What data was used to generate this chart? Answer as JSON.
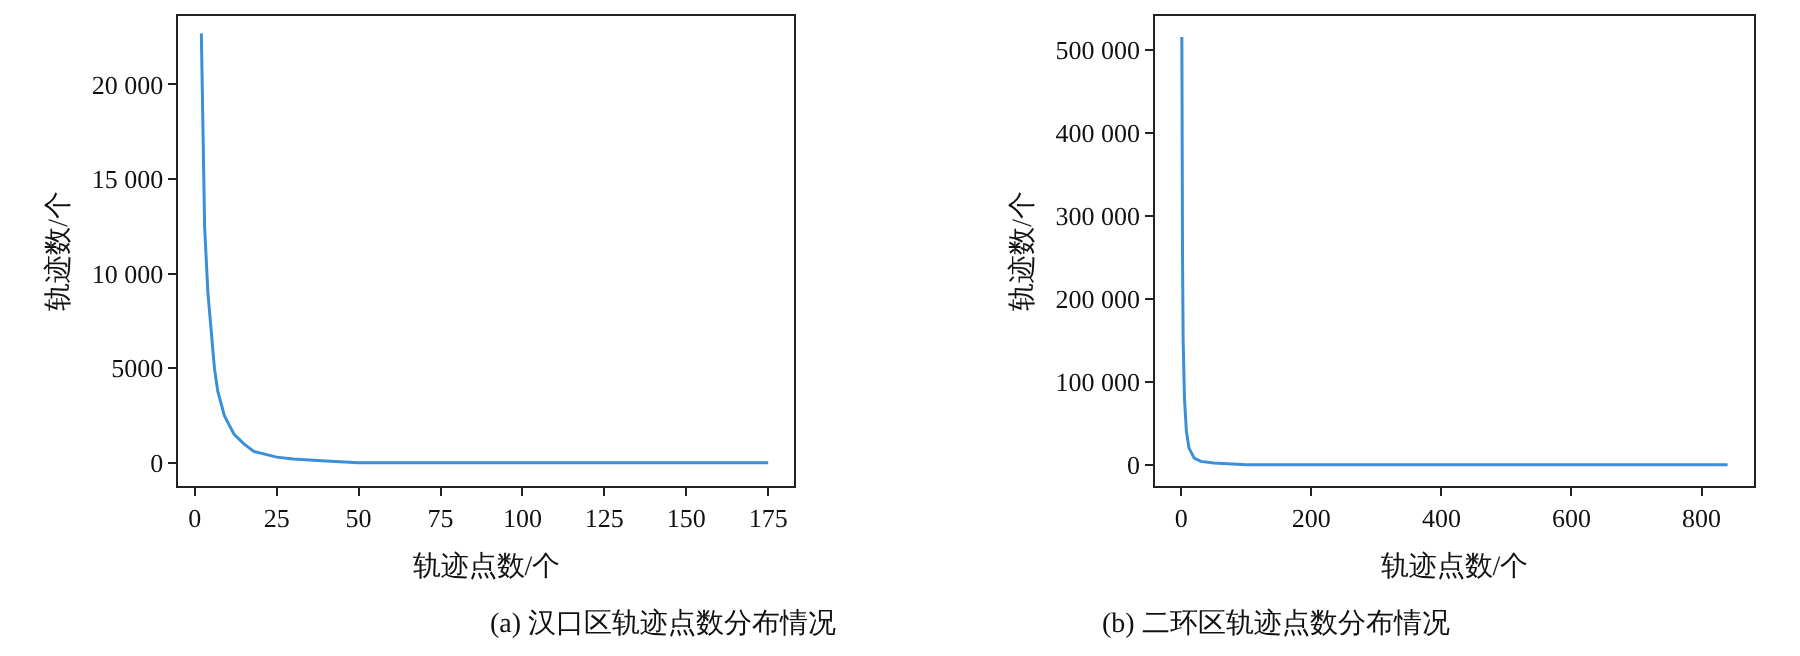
{
  "chart_data": [
    {
      "type": "line",
      "xlabel": "轨迹点数/个",
      "ylabel": "轨迹数/个",
      "annotations": [
        "(a) 汉口区轨迹点数分布情况"
      ],
      "xlim": [
        -5,
        183
      ],
      "xticks": [
        0,
        25,
        50,
        75,
        100,
        125,
        150,
        175
      ],
      "ylim": [
        -1200,
        23600
      ],
      "yticks": [
        0,
        5000,
        {
          "value": 10000,
          "label": "10 000"
        },
        {
          "value": 15000,
          "label": "15 000"
        },
        {
          "value": 20000,
          "label": "20 000"
        }
      ],
      "marker": "none",
      "line_style": "solid",
      "series": [
        {
          "color": "#3a8fd9",
          "x": [
            2,
            3,
            4,
            5,
            6,
            7,
            9,
            12,
            15,
            18,
            25,
            30,
            40,
            50,
            75,
            100,
            125,
            150,
            175
          ],
          "values": [
            22700,
            12500,
            9000,
            7000,
            5000,
            3800,
            2500,
            1500,
            1000,
            600,
            300,
            200,
            100,
            0,
            0,
            0,
            0,
            0,
            0
          ]
        }
      ]
    },
    {
      "type": "line",
      "xlabel": "轨迹点数/个",
      "ylabel": "轨迹数/个",
      "annotations": [
        "(b) 二环区轨迹点数分布情况"
      ],
      "xlim": [
        -40,
        880
      ],
      "xticks": [
        0,
        200,
        400,
        600,
        800
      ],
      "ylim": [
        -25000,
        540000
      ],
      "yticks": [
        0,
        {
          "value": 100000,
          "label": "100 000"
        },
        {
          "value": 200000,
          "label": "200 000"
        },
        {
          "value": 300000,
          "label": "300 000"
        },
        {
          "value": 400000,
          "label": "400 000"
        },
        {
          "value": 500000,
          "label": "500 000"
        }
      ],
      "marker": "none",
      "line_style": "solid",
      "series": [
        {
          "color": "#3a8fd9",
          "x": [
            1,
            2,
            3,
            5,
            8,
            12,
            20,
            30,
            50,
            100,
            200,
            400,
            600,
            840
          ],
          "values": [
            515000,
            250000,
            150000,
            80000,
            40000,
            20000,
            8000,
            4000,
            2000,
            0,
            0,
            0,
            0,
            0
          ]
        }
      ]
    }
  ]
}
